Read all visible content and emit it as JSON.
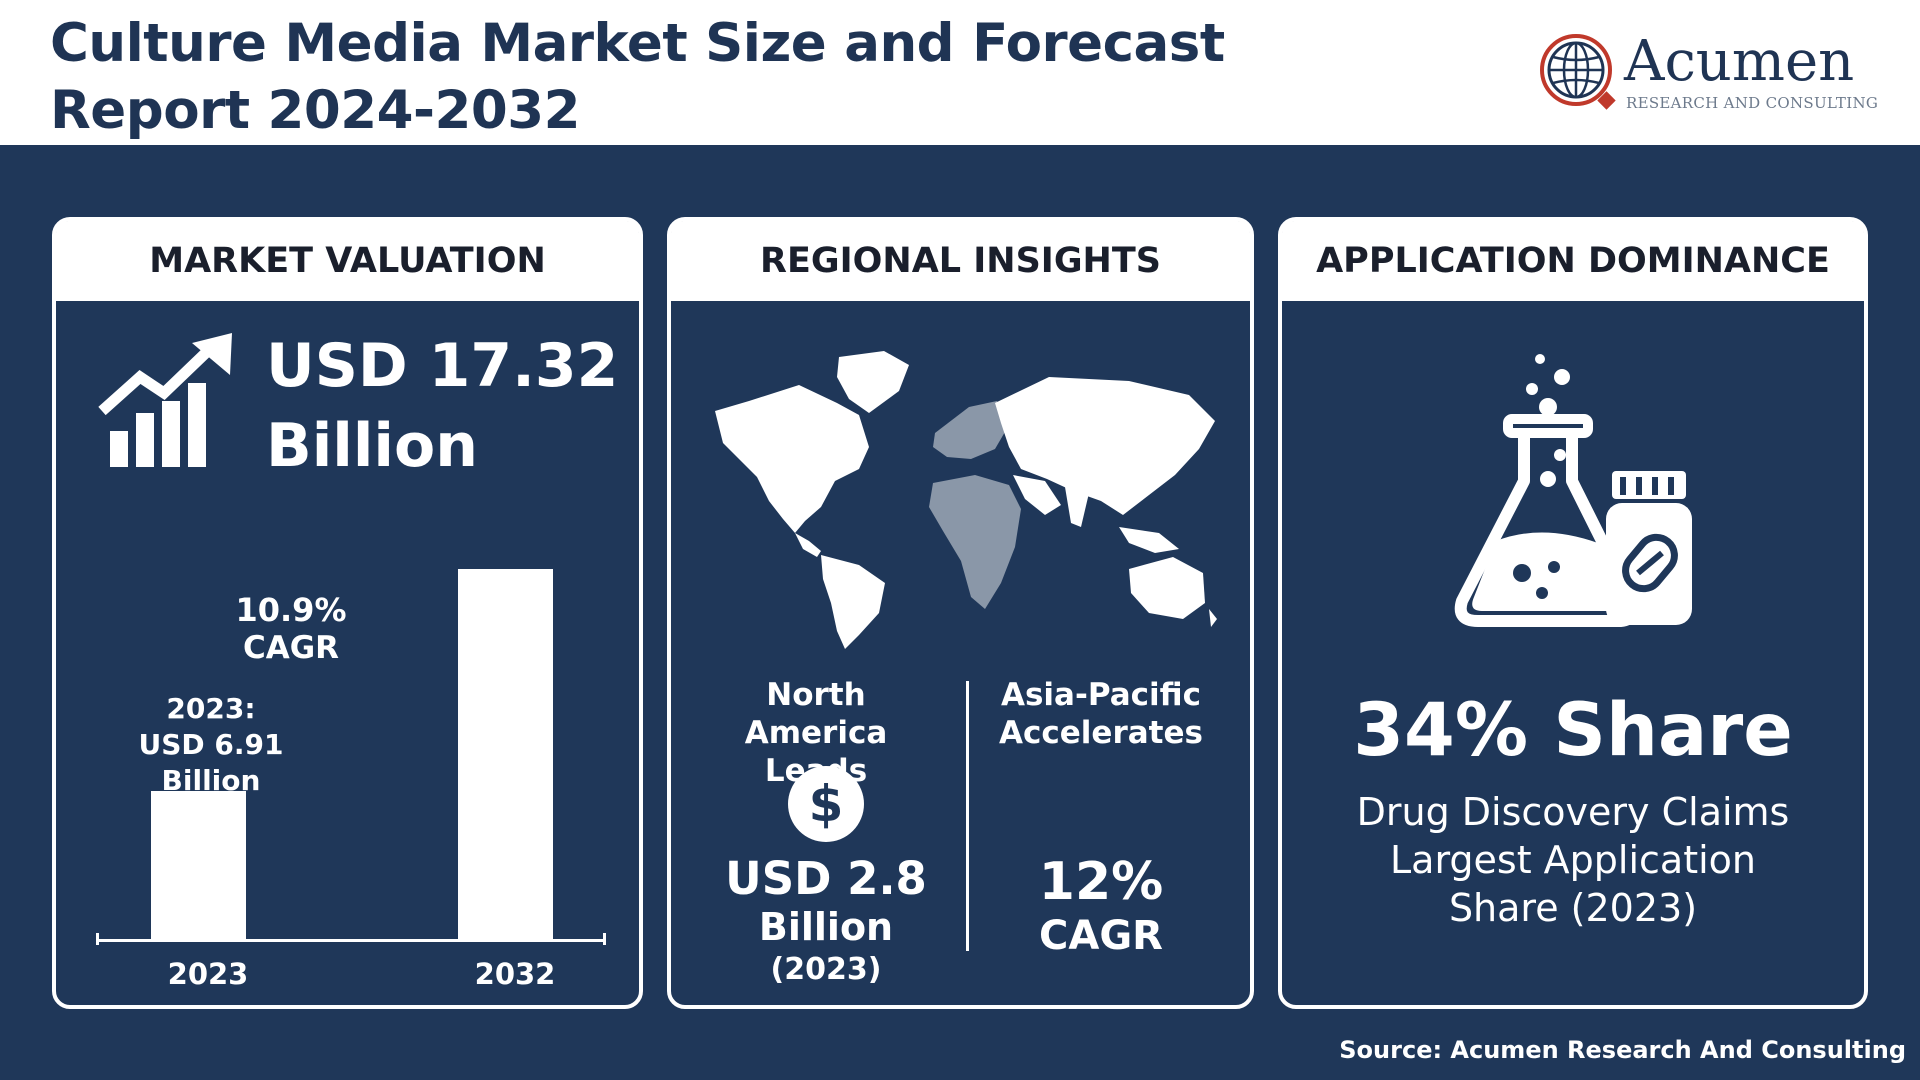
{
  "header": {
    "title_line1": "Culture Media Market Size and Forecast",
    "title_line2": "Report 2024-2032",
    "logo": {
      "name": "Acumen",
      "tagline": "RESEARCH AND CONSULTING",
      "icon": "globe-logo-icon"
    }
  },
  "panels": {
    "valuation": {
      "title": "MARKET VALUATION",
      "icon": "growth-chart-icon",
      "value_line1": "USD 17.32",
      "value_line2": "Billion",
      "cagr_value": "10.9%",
      "cagr_label": "CAGR",
      "bar_label_line1": "2023:",
      "bar_label_line2": "USD 6.91",
      "bar_label_line3": "Billion"
    },
    "regional": {
      "title": "REGIONAL INSIGHTS",
      "map_icon": "world-map-icon",
      "north_america": {
        "title_line1": "North America",
        "title_line2": "Leads",
        "icon": "dollar-icon",
        "value": "USD 2.8",
        "unit": "Billion",
        "year": "(2023)"
      },
      "asia_pacific": {
        "title_line1": "Asia-Pacific",
        "title_line2": "Accelerates",
        "value": "12%",
        "label": "CAGR"
      }
    },
    "application": {
      "title": "APPLICATION DOMINANCE",
      "icon": "flask-pill-bottle-icon",
      "share": "34% Share",
      "desc_line1": "Drug Discovery Claims",
      "desc_line2": "Largest Application",
      "desc_line3": "Share (2023)"
    }
  },
  "chart_data": {
    "type": "bar",
    "categories": [
      "2023",
      "2032"
    ],
    "values": [
      6.91,
      17.32
    ],
    "ylabel": "USD Billion",
    "annotation": "10.9% CAGR"
  },
  "footer": {
    "source": "Source: Acumen Research And Consulting"
  },
  "colors": {
    "navy_background": "#1f3759",
    "title_navy": "#1f3454",
    "panel_text": "#ffffff",
    "logo_accent": "#c0392b"
  }
}
